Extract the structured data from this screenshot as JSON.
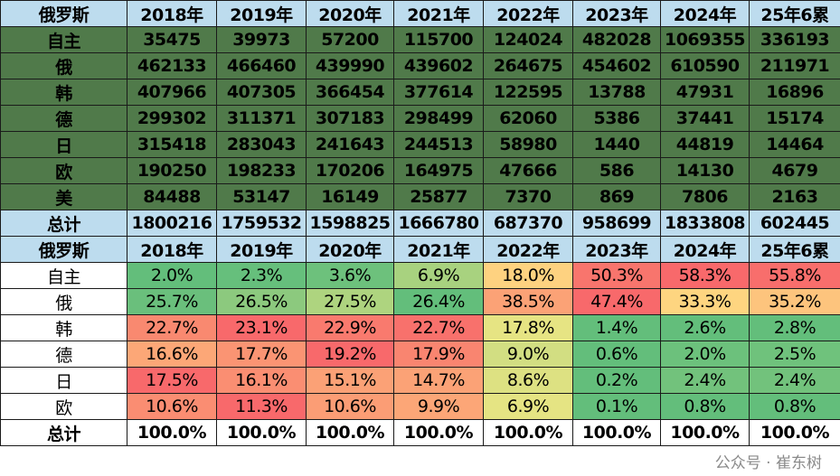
{
  "volume_table": {
    "header": [
      "俄罗斯",
      "2018年",
      "2019年",
      "2020年",
      "2021年",
      "2022年",
      "2023年",
      "2024年",
      "25年6累"
    ],
    "rows": [
      {
        "label": "自主",
        "values": [
          "35475",
          "39973",
          "57200",
          "115700",
          "124024",
          "482028",
          "1069355",
          "336193"
        ]
      },
      {
        "label": "俄",
        "values": [
          "462133",
          "466460",
          "439990",
          "439602",
          "264675",
          "454602",
          "610590",
          "211971"
        ]
      },
      {
        "label": "韩",
        "values": [
          "407966",
          "407305",
          "366454",
          "377614",
          "122595",
          "13788",
          "47931",
          "16896"
        ]
      },
      {
        "label": "德",
        "values": [
          "299302",
          "311371",
          "307183",
          "298499",
          "62060",
          "5386",
          "37441",
          "15174"
        ]
      },
      {
        "label": "日",
        "values": [
          "315418",
          "283043",
          "241643",
          "244513",
          "58980",
          "1440",
          "44819",
          "14464"
        ]
      },
      {
        "label": "欧",
        "values": [
          "190250",
          "198233",
          "170206",
          "164975",
          "47666",
          "586",
          "14130",
          "4679"
        ]
      },
      {
        "label": "美",
        "values": [
          "84488",
          "53147",
          "16149",
          "25877",
          "7370",
          "869",
          "7806",
          "2163"
        ]
      }
    ],
    "total": {
      "label": "总计",
      "values": [
        "1800216",
        "1759532",
        "1598825",
        "1666780",
        "687370",
        "958699",
        "1833808",
        "602445"
      ]
    },
    "colors": {
      "header": "#bddcee",
      "body": "#507a4a"
    }
  },
  "share_table": {
    "header": [
      "俄罗斯",
      "2018年",
      "2019年",
      "2020年",
      "2021年",
      "2022年",
      "2023年",
      "2024年",
      "25年6累"
    ],
    "rows": [
      {
        "label": "自主",
        "values": [
          "2.0%",
          "2.3%",
          "3.6%",
          "6.9%",
          "18.0%",
          "50.3%",
          "58.3%",
          "55.8%"
        ],
        "colors": [
          "#63be7b",
          "#66bf7c",
          "#6dc17c",
          "#a8d27f",
          "#fed280",
          "#f8756d",
          "#f8696b",
          "#f86e6c"
        ]
      },
      {
        "label": "俄",
        "values": [
          "25.7%",
          "26.5%",
          "27.5%",
          "26.4%",
          "38.5%",
          "47.4%",
          "33.3%",
          "35.2%"
        ],
        "colors": [
          "#6abf7c",
          "#8cc97e",
          "#aed47f",
          "#63be7b",
          "#fba276",
          "#f8696b",
          "#fed580",
          "#fdc47d"
        ]
      },
      {
        "label": "韩",
        "values": [
          "22.7%",
          "23.1%",
          "22.9%",
          "22.7%",
          "17.8%",
          "1.4%",
          "2.6%",
          "2.8%"
        ],
        "colors": [
          "#f98970",
          "#f8696b",
          "#f97a6e",
          "#f8716c",
          "#e6e483",
          "#63be7b",
          "#63be7b",
          "#63be7b"
        ]
      },
      {
        "label": "德",
        "values": [
          "16.6%",
          "17.7%",
          "19.2%",
          "17.9%",
          "9.0%",
          "0.6%",
          "2.0%",
          "2.5%"
        ],
        "colors": [
          "#fca777",
          "#fa9473",
          "#f8696b",
          "#f98570",
          "#d2de82",
          "#63be7b",
          "#6cc17c",
          "#6fc27c"
        ]
      },
      {
        "label": "日",
        "values": [
          "17.5%",
          "16.1%",
          "15.1%",
          "14.7%",
          "8.6%",
          "0.2%",
          "2.4%",
          "2.4%"
        ],
        "colors": [
          "#f8696b",
          "#fa8e72",
          "#fba176",
          "#fba276",
          "#dde182",
          "#63be7b",
          "#72c27c",
          "#72c27c"
        ]
      },
      {
        "label": "欧",
        "values": [
          "10.6%",
          "11.3%",
          "10.6%",
          "9.9%",
          "6.9%",
          "0.1%",
          "0.8%",
          "0.8%"
        ],
        "colors": [
          "#fa8d72",
          "#f8696b",
          "#fb9d75",
          "#fca677",
          "#e5e483",
          "#63be7b",
          "#63be7b",
          "#63be7b"
        ]
      }
    ],
    "total": {
      "label": "总计",
      "values": [
        "100.0%",
        "100.0%",
        "100.0%",
        "100.0%",
        "100.0%",
        "100.0%",
        "100.0%",
        "100.0%"
      ]
    }
  },
  "watermark": "公众号 · 崔东树"
}
